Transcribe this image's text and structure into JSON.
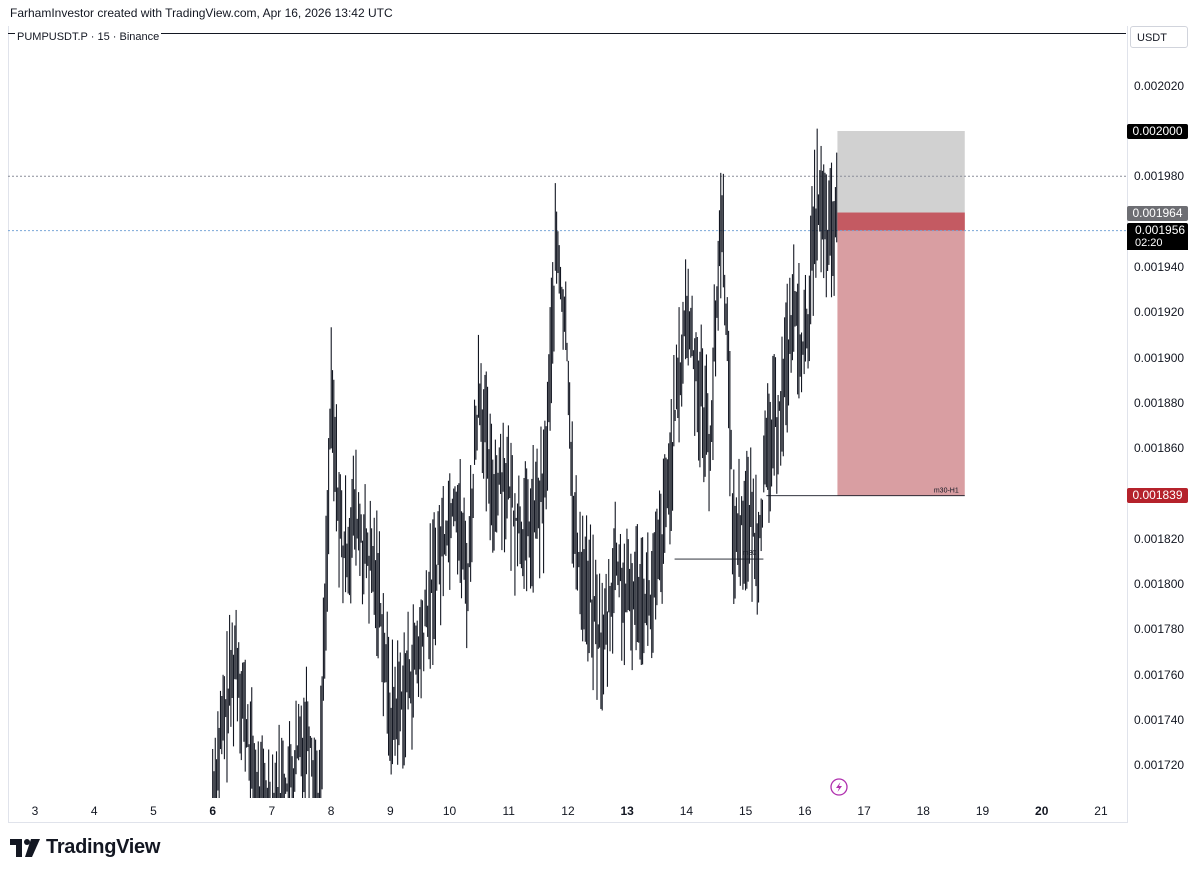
{
  "header": {
    "text": "FarhamInvestor created with TradingView.com, Apr 16, 2026 13:42 UTC"
  },
  "symbol": {
    "text": "PUMPUSDT.P · 15 · Binance"
  },
  "price_axis": {
    "unit": "USDT"
  },
  "labels": {
    "target": "0.002000",
    "entry": "0.001964",
    "last": "0.001956",
    "countdown": "02:20",
    "stop": "0.001839",
    "zone_m30": "m30",
    "zone_m30_h1": "m30-H1"
  },
  "colors": {
    "target_zone": "#d1d1d1",
    "stop_zone": "#d99ea2",
    "entry_band": "#c45a62",
    "stop_label": "#b5222b",
    "entry_label": "#6d6e73",
    "target_label": "#000000",
    "last_line": "#7aa6d8"
  },
  "brand": {
    "name": "TradingView",
    "badge_icon": "lightning-icon"
  },
  "chart_data": {
    "type": "candlestick",
    "title": "PUMPUSDT.P · 15 · Binance",
    "ylim": [
      0.0017,
      0.00203
    ],
    "yticks": [
      "0.002020",
      "0.002000",
      "0.001980",
      "0.001940",
      "0.001920",
      "0.001900",
      "0.001880",
      "0.001860",
      "0.001820",
      "0.001800",
      "0.001780",
      "0.001760",
      "0.001740",
      "0.001720"
    ],
    "x_ticks": [
      {
        "label": "3",
        "day": 3,
        "bold": false
      },
      {
        "label": "4",
        "day": 4,
        "bold": false
      },
      {
        "label": "5",
        "day": 5,
        "bold": false
      },
      {
        "label": "6",
        "day": 6,
        "bold": true
      },
      {
        "label": "7",
        "day": 7,
        "bold": false
      },
      {
        "label": "8",
        "day": 8,
        "bold": false
      },
      {
        "label": "9",
        "day": 9,
        "bold": false
      },
      {
        "label": "10",
        "day": 10,
        "bold": false
      },
      {
        "label": "11",
        "day": 11,
        "bold": false
      },
      {
        "label": "12",
        "day": 12,
        "bold": false
      },
      {
        "label": "13",
        "day": 13,
        "bold": true
      },
      {
        "label": "14",
        "day": 14,
        "bold": false
      },
      {
        "label": "15",
        "day": 15,
        "bold": false
      },
      {
        "label": "16",
        "day": 16,
        "bold": false
      },
      {
        "label": "17",
        "day": 17,
        "bold": false
      },
      {
        "label": "18",
        "day": 18,
        "bold": false
      },
      {
        "label": "19",
        "day": 19,
        "bold": false
      },
      {
        "label": "20",
        "day": 20,
        "bold": true
      },
      {
        "label": "21",
        "day": 21,
        "bold": false
      }
    ],
    "price_path": [
      [
        6.0,
        0.00171
      ],
      [
        6.2,
        0.00174
      ],
      [
        6.4,
        0.00177
      ],
      [
        6.6,
        0.00173
      ],
      [
        6.8,
        0.0017
      ],
      [
        7.3,
        0.00171
      ],
      [
        7.6,
        0.00174
      ],
      [
        7.8,
        0.0017
      ],
      [
        8.0,
        0.00188
      ],
      [
        8.2,
        0.00181
      ],
      [
        8.4,
        0.00183
      ],
      [
        8.6,
        0.00181
      ],
      [
        8.8,
        0.0018
      ],
      [
        9.0,
        0.00174
      ],
      [
        9.2,
        0.00175
      ],
      [
        9.5,
        0.00177
      ],
      [
        9.8,
        0.00181
      ],
      [
        10.1,
        0.00184
      ],
      [
        10.3,
        0.0018
      ],
      [
        10.5,
        0.00189
      ],
      [
        10.7,
        0.00184
      ],
      [
        10.9,
        0.00185
      ],
      [
        11.1,
        0.00183
      ],
      [
        11.3,
        0.00182
      ],
      [
        11.6,
        0.00184
      ],
      [
        11.8,
        0.00195
      ],
      [
        12.0,
        0.0019
      ],
      [
        12.1,
        0.00182
      ],
      [
        12.3,
        0.0018
      ],
      [
        12.6,
        0.00177
      ],
      [
        12.8,
        0.00181
      ],
      [
        13.0,
        0.00179
      ],
      [
        13.2,
        0.0018
      ],
      [
        13.4,
        0.00179
      ],
      [
        13.6,
        0.00182
      ],
      [
        13.8,
        0.00187
      ],
      [
        14.0,
        0.00192
      ],
      [
        14.2,
        0.00189
      ],
      [
        14.4,
        0.00186
      ],
      [
        14.6,
        0.00197
      ],
      [
        14.8,
        0.00182
      ],
      [
        15.0,
        0.00183
      ],
      [
        15.2,
        0.00182
      ],
      [
        15.4,
        0.00186
      ],
      [
        15.6,
        0.00188
      ],
      [
        15.8,
        0.00192
      ],
      [
        16.0,
        0.0019
      ],
      [
        16.2,
        0.00197
      ],
      [
        16.4,
        0.00195
      ],
      [
        16.55,
        0.00196
      ]
    ],
    "annotations": {
      "target_price": 0.002,
      "entry_price": 0.001964,
      "stop_price": 0.001839,
      "last_price": 0.001956,
      "resistance_price": 0.00198,
      "m30_level_price": 0.001811,
      "zone_start_day": 16.55,
      "zone_end_day": 18.7
    }
  }
}
